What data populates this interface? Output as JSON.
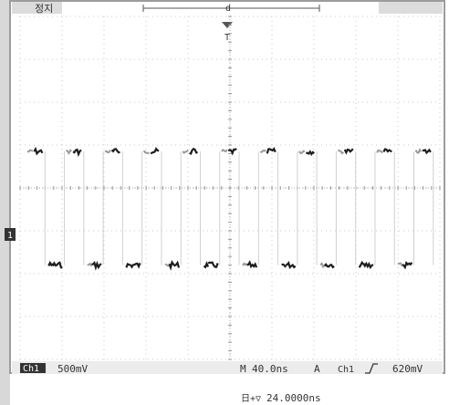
{
  "header": {
    "status_text": "정지",
    "trigger_marker": "d",
    "trigger_position_marker": "T"
  },
  "channel": {
    "marker": "1",
    "label": "Ch1",
    "volts_per_div": "500mV"
  },
  "timebase": {
    "marker": "M",
    "time_per_div": "40.0ns"
  },
  "trigger": {
    "marker": "A",
    "source": "Ch1",
    "slope_icon": "rising-edge-icon",
    "level": "620mV"
  },
  "horizontal_position": {
    "label": "日+▽",
    "value": "24.0000ns"
  },
  "colors": {
    "background": "#ffffff",
    "frame": "#9c9c9c",
    "grid": "#c8c8c8",
    "trace_dark": "#1e1e1e",
    "trace_light": "#9a9a9a",
    "bar": "#dcdcdc"
  },
  "waveform": {
    "high_level_div": 0.85,
    "low_level_div": -1.8,
    "period_ns": 37,
    "duty": 0.5
  }
}
